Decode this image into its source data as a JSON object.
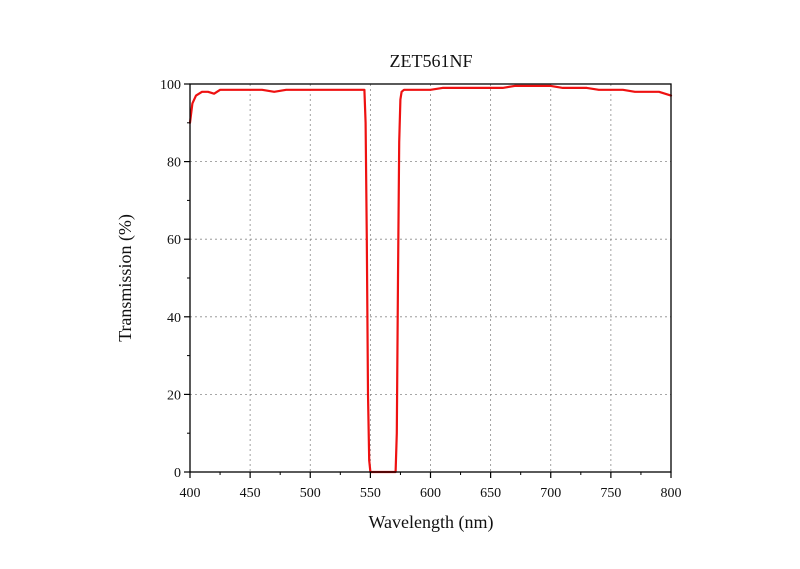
{
  "chart_data": {
    "type": "line",
    "title": "ZET561NF",
    "xlabel": "Wavelength (nm)",
    "ylabel": "Transmission (%)",
    "xlim": [
      400,
      800
    ],
    "ylim": [
      0,
      100
    ],
    "x_ticks": [
      400,
      450,
      500,
      550,
      600,
      650,
      700,
      750,
      800
    ],
    "y_ticks": [
      0,
      20,
      40,
      60,
      80,
      100
    ],
    "grid": true,
    "legend": "none",
    "colors": {
      "line": "#ee1111",
      "axis": "#000000",
      "grid": "#8a8a8a"
    },
    "series": [
      {
        "x": [
          400,
          402,
          405,
          410,
          415,
          420,
          425,
          430,
          440,
          450,
          460,
          470,
          480,
          490,
          500,
          510,
          520,
          530,
          540,
          545,
          546,
          547,
          548,
          549,
          550,
          560,
          571,
          572,
          573,
          574,
          575,
          576,
          578,
          580,
          590,
          600,
          610,
          620,
          630,
          640,
          650,
          660,
          670,
          680,
          690,
          700,
          710,
          720,
          730,
          740,
          750,
          760,
          770,
          780,
          790,
          800
        ],
        "y": [
          90,
          95,
          97,
          98,
          98,
          97.5,
          98.5,
          98.5,
          98.5,
          98.5,
          98.5,
          98,
          98.5,
          98.5,
          98.5,
          98.5,
          98.5,
          98.5,
          98.5,
          98.5,
          90,
          60,
          20,
          3,
          0,
          0,
          0,
          10,
          50,
          85,
          96,
          98,
          98.5,
          98.5,
          98.5,
          98.5,
          99,
          99,
          99,
          99,
          99,
          99,
          99.5,
          99.5,
          99.5,
          99.5,
          99,
          99,
          99,
          98.5,
          98.5,
          98.5,
          98,
          98,
          98,
          97
        ]
      }
    ]
  }
}
